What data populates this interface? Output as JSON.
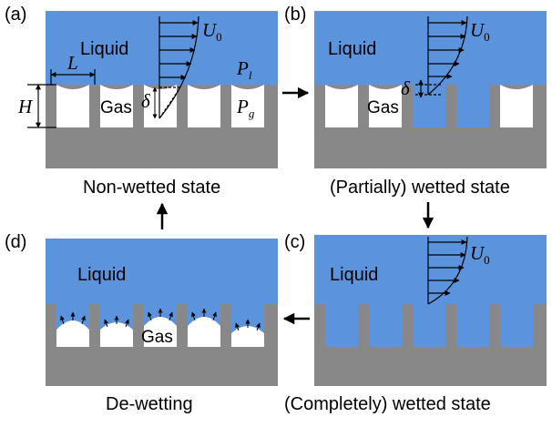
{
  "colors": {
    "liquid": "#5b93dc",
    "solid": "#888888",
    "gas": "#ffffff",
    "line": "#000000"
  },
  "panels": {
    "a": {
      "tag": "(a)",
      "caption": "Non-wetted state",
      "liquid": "Liquid",
      "gas": "Gas"
    },
    "b": {
      "tag": "(b)",
      "caption": "(Partially) wetted state",
      "liquid": "Liquid",
      "gas": "Gas"
    },
    "c": {
      "tag": "(c)",
      "caption": "(Completely) wetted state",
      "liquid": "Liquid"
    },
    "d": {
      "tag": "(d)",
      "caption": "De-wetting",
      "liquid": "Liquid",
      "gas": "Gas"
    }
  },
  "symbols": {
    "L": "L",
    "H": "H",
    "delta": "δ",
    "U": "U",
    "U_sub": "0",
    "P": "P",
    "P_l_sub": "l",
    "P_g_sub": "g"
  },
  "icons": {
    "arrow_a_to_b": "arrow-right-icon",
    "arrow_b_to_c": "arrow-down-icon",
    "arrow_c_to_d": "arrow-left-icon",
    "arrow_d_to_a": "arrow-up-icon"
  }
}
